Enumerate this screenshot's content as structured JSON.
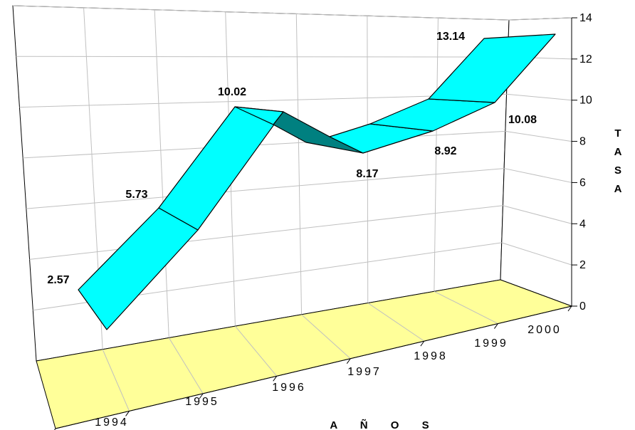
{
  "chart_data": {
    "type": "line",
    "style": "3d-ribbon",
    "categories": [
      "1994",
      "1995",
      "1996",
      "1997",
      "1998",
      "1999",
      "2000"
    ],
    "series": [
      {
        "values": [
          2.57,
          5.73,
          10.02,
          8.17,
          8.92,
          10.08,
          13.14
        ]
      }
    ],
    "data_labels": [
      "2.57",
      "5.73",
      "10.02",
      "8.17",
      "8.92",
      "10.08",
      "13.14"
    ],
    "y_ticks": [
      "0",
      "2",
      "4",
      "6",
      "8",
      "10",
      "12",
      "14"
    ],
    "ylim": [
      0,
      14
    ],
    "xlabel": "A Ñ O S",
    "ylabel": "TASA",
    "ylabel_letters": [
      "T",
      "A",
      "S",
      "A"
    ],
    "grid": true,
    "legend": "none",
    "colors": {
      "ribbon_top": "#00FFFF",
      "ribbon_side": "#008080",
      "floor": "#FFFF99",
      "grid": "#C0C0C0",
      "outline": "#000000"
    }
  }
}
